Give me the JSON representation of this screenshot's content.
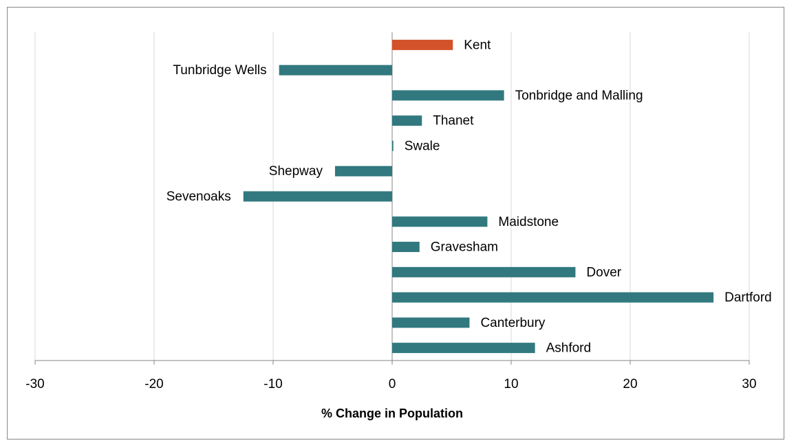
{
  "chart_data": {
    "type": "hbar",
    "x_label": "% Change in Population",
    "categories": [
      "Kent",
      "Tunbridge Wells",
      "Tonbridge and Malling",
      "Thanet",
      "Swale",
      "Shepway",
      "Sevenoaks",
      "Maidstone",
      "Gravesham",
      "Dover",
      "Dartford",
      "Canterbury",
      "Ashford"
    ],
    "values": [
      5.1,
      -9.5,
      9.4,
      2.5,
      0.1,
      -4.8,
      -12.5,
      8.0,
      2.3,
      15.4,
      27.0,
      6.5,
      12.0
    ],
    "colors": [
      "#d4522a",
      "#31797f",
      "#31797f",
      "#31797f",
      "#31797f",
      "#31797f",
      "#31797f",
      "#31797f",
      "#31797f",
      "#31797f",
      "#31797f",
      "#31797f",
      "#31797f"
    ],
    "xlim": [
      -30,
      30
    ],
    "xticks": [
      -30,
      -20,
      -10,
      0,
      10,
      20,
      30
    ],
    "grid": true
  }
}
